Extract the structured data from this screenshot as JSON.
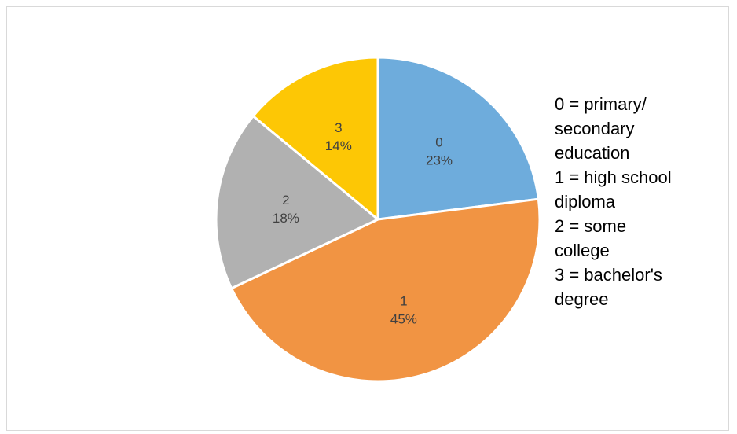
{
  "chart_data": {
    "type": "pie",
    "categories": [
      "0",
      "1",
      "2",
      "3"
    ],
    "values": [
      23,
      45,
      18,
      14
    ],
    "value_unit": "%",
    "colors": [
      "#6EACDC",
      "#F19443",
      "#B1B1B1",
      "#FDC705"
    ],
    "slice_labels": [
      {
        "category": "0",
        "percent": "23%"
      },
      {
        "category": "1",
        "percent": "45%"
      },
      {
        "category": "2",
        "percent": "18%"
      },
      {
        "category": "3",
        "percent": "14%"
      }
    ],
    "start": "12 o'clock",
    "direction": "clockwise",
    "legend": "none",
    "annotation_lines": [
      "0 = primary/",
      "secondary",
      "education",
      "1 = high school",
      "diploma",
      "2 = some",
      "college",
      "3 = bachelor's",
      "degree"
    ]
  }
}
